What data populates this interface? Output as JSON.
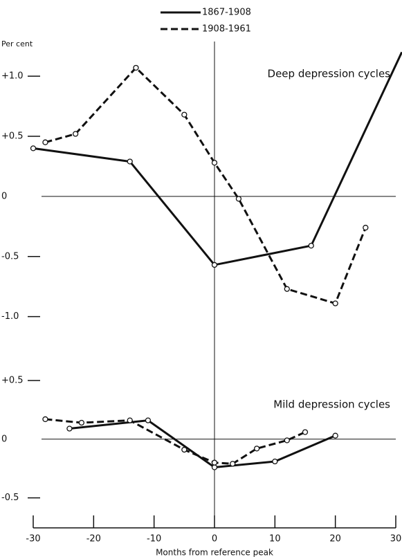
{
  "chart_data": [
    {
      "type": "line",
      "title": "Deep depression cycles",
      "y_label": "Per cent",
      "ylim": [
        -1.1,
        1.3
      ],
      "yticks": [
        {
          "value": 1.0,
          "label": "+1.0"
        },
        {
          "value": 0.5,
          "label": "+0.5"
        },
        0,
        -0.5,
        {
          "value": -1.0,
          "label": "-1.0"
        }
      ],
      "series": [
        {
          "name": "1867-1908",
          "color": "#111111",
          "style": "solid",
          "x": [
            -30,
            -14,
            0,
            16,
            31
          ],
          "values": [
            0.4,
            0.29,
            -0.57,
            -0.41,
            1.2
          ]
        },
        {
          "name": "1908-1961",
          "color": "#111111",
          "style": "dashed",
          "x": [
            -28,
            -23,
            -13,
            -5,
            0,
            4,
            12,
            20,
            25
          ],
          "values": [
            0.45,
            0.52,
            1.07,
            0.68,
            0.28,
            -0.02,
            -0.77,
            -0.89,
            -0.26
          ]
        }
      ]
    },
    {
      "type": "line",
      "title": "Mild depression cycles",
      "x_label": "Months from reference peak",
      "xlim": [
        -30,
        30
      ],
      "xticks": [
        -30,
        -20,
        -10,
        0,
        10,
        20,
        30
      ],
      "ylim": [
        -0.75,
        0.6
      ],
      "yticks": [
        {
          "value": 0.5,
          "label": "+0.5"
        },
        0,
        -0.5
      ],
      "series": [
        {
          "name": "1867-1908",
          "color": "#111111",
          "style": "solid",
          "x": [
            -24,
            -11,
            0,
            10,
            20
          ],
          "values": [
            0.09,
            0.16,
            -0.24,
            -0.19,
            0.03
          ]
        },
        {
          "name": "1908-1961",
          "color": "#111111",
          "style": "dashed",
          "x": [
            -28,
            -22,
            -14,
            -5,
            0,
            3,
            7,
            12,
            15
          ],
          "values": [
            0.17,
            0.14,
            0.16,
            -0.09,
            -0.2,
            -0.21,
            -0.08,
            -0.01,
            0.06
          ]
        }
      ]
    }
  ]
}
